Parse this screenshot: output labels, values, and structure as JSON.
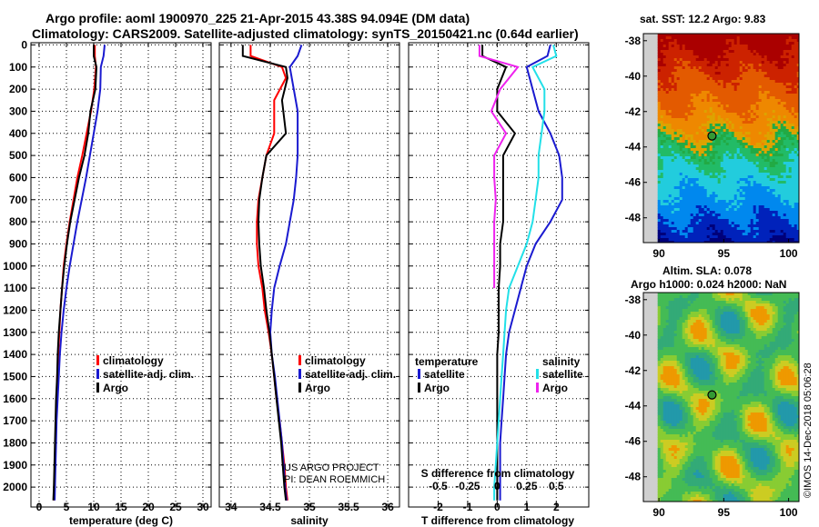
{
  "header": {
    "line1": "Argo profile: aoml 1900970_225 21-Apr-2015 43.38S 94.094E (DM data)",
    "line2": "Climatology: CARS2009. Satellite-adjusted climatology: synTS_20150421.nc (0.64d earlier)"
  },
  "colors": {
    "climatology": "#ff0000",
    "satellite": "#1a1ad0",
    "argo": "#000000",
    "sal_satellite": "#22e0e8",
    "sal_argo": "#ee22ee"
  },
  "depth_axis": {
    "ticks": [
      0,
      100,
      200,
      300,
      400,
      500,
      600,
      700,
      800,
      900,
      1000,
      1100,
      1200,
      1300,
      1400,
      1500,
      1600,
      1700,
      1800,
      1900,
      2000
    ],
    "range": [
      -10,
      2090
    ]
  },
  "temperature_panel": {
    "xlabel": "temperature (deg C)",
    "xlim": [
      -1.5,
      31.5
    ],
    "xticks": [
      0,
      5,
      10,
      15,
      20,
      25,
      30
    ],
    "legend": [
      "climatology",
      "satellite-adj. clim.",
      "Argo"
    ],
    "series": [
      {
        "name": "climatology",
        "color_key": "climatology",
        "x": [
          10.2,
          10.2,
          10.4,
          10.1,
          9.5,
          8.7,
          7.9,
          7.0,
          6.3,
          5.6,
          5.0,
          4.5,
          4.2,
          3.9,
          3.7,
          3.5,
          3.3,
          3.2,
          3.1,
          3.0,
          2.9,
          2.8,
          2.7
        ],
        "depth": [
          0,
          50,
          100,
          200,
          300,
          400,
          500,
          600,
          700,
          800,
          900,
          1000,
          1100,
          1200,
          1300,
          1400,
          1500,
          1600,
          1700,
          1800,
          1900,
          2000,
          2060
        ]
      },
      {
        "name": "satellite",
        "color_key": "satellite",
        "x": [
          12.0,
          11.8,
          11.3,
          11.2,
          10.7,
          10.0,
          9.3,
          8.6,
          7.8,
          7.0,
          6.3,
          5.6,
          5.0,
          4.5,
          4.1,
          3.8,
          3.6,
          3.4,
          3.2,
          3.1,
          3.0,
          2.9,
          2.85
        ],
        "depth": [
          0,
          50,
          100,
          200,
          300,
          400,
          500,
          600,
          700,
          800,
          900,
          1000,
          1100,
          1200,
          1300,
          1400,
          1500,
          1600,
          1700,
          1800,
          1900,
          2000,
          2060
        ]
      },
      {
        "name": "argo",
        "color_key": "argo",
        "x": [
          10.0,
          10.0,
          10.5,
          10.3,
          9.4,
          9.0,
          8.3,
          7.3,
          6.5,
          5.7,
          5.1,
          4.6,
          4.2,
          3.9,
          3.6,
          3.4,
          3.3,
          3.1,
          3.0,
          2.9,
          2.8,
          2.7,
          2.6
        ],
        "depth": [
          0,
          50,
          100,
          200,
          300,
          400,
          500,
          600,
          700,
          800,
          900,
          1000,
          1100,
          1200,
          1300,
          1400,
          1500,
          1600,
          1700,
          1800,
          1900,
          2000,
          2060
        ]
      }
    ]
  },
  "salinity_panel": {
    "xlabel": "salinity",
    "xlim": [
      33.85,
      36.15
    ],
    "xticks": [
      34,
      34.5,
      35,
      35.5,
      36
    ],
    "xticklabels": [
      "34",
      "34.5",
      "35",
      "35.5",
      "36"
    ],
    "legend": [
      "climatology",
      "satellite-adj. clim.",
      "Argo"
    ],
    "credit1": "US ARGO PROJECT",
    "credit2": "PI: DEAN ROEMMICH",
    "series": [
      {
        "name": "climatology",
        "color_key": "climatology",
        "x": [
          34.25,
          34.25,
          34.65,
          34.7,
          34.55,
          34.55,
          34.45,
          34.4,
          34.35,
          34.33,
          34.33,
          34.35,
          34.4,
          34.43,
          34.48,
          34.52,
          34.55,
          34.58,
          34.62,
          34.65,
          34.68,
          34.7,
          34.72
        ],
        "depth": [
          0,
          50,
          100,
          150,
          250,
          400,
          500,
          600,
          700,
          800,
          900,
          1000,
          1100,
          1200,
          1300,
          1400,
          1500,
          1600,
          1700,
          1800,
          1900,
          2000,
          2060
        ]
      },
      {
        "name": "satellite",
        "color_key": "satellite",
        "x": [
          34.9,
          34.85,
          34.75,
          34.8,
          34.85,
          34.85,
          34.85,
          34.83,
          34.8,
          34.75,
          34.7,
          34.62,
          34.55,
          34.52,
          34.5,
          34.52,
          34.56,
          34.59,
          34.62,
          34.65,
          34.67,
          34.69,
          34.71
        ],
        "depth": [
          0,
          50,
          100,
          200,
          300,
          400,
          500,
          600,
          700,
          800,
          900,
          1000,
          1100,
          1200,
          1300,
          1400,
          1500,
          1600,
          1700,
          1800,
          1900,
          2000,
          2060
        ]
      },
      {
        "name": "argo",
        "color_key": "argo",
        "x": [
          34.15,
          34.15,
          34.7,
          34.72,
          34.65,
          34.7,
          34.45,
          34.4,
          34.36,
          34.35,
          34.36,
          34.38,
          34.42,
          34.45,
          34.49,
          34.52,
          34.55,
          34.58,
          34.61,
          34.64,
          34.66,
          34.68,
          34.7
        ],
        "depth": [
          0,
          50,
          100,
          150,
          250,
          400,
          500,
          600,
          700,
          800,
          900,
          1000,
          1100,
          1200,
          1300,
          1400,
          1500,
          1600,
          1700,
          1800,
          1900,
          2000,
          2060
        ]
      }
    ]
  },
  "difference_panel": {
    "xlabel": "T difference from climatology",
    "xlabel_top": "S difference from climatology",
    "xlim": [
      -3,
      3.1
    ],
    "xticks": [
      -2,
      -1,
      0,
      1,
      2
    ],
    "s_ticks": [
      -0.5,
      -0.25,
      0,
      0.25,
      0.5
    ],
    "s_ticklabels": [
      "-0.5",
      "-0.25",
      "0",
      "0.25",
      "0.5"
    ],
    "legend_temperature_title": "temperature",
    "legend_salinity_title": "salinity",
    "legend_temperature": [
      "satellite",
      "Argo"
    ],
    "legend_salinity": [
      "satellite",
      "Argo"
    ],
    "series": [
      {
        "name": "T satellite",
        "color_key": "satellite",
        "x": [
          1.8,
          1.7,
          1.0,
          1.2,
          1.4,
          1.8,
          2.1,
          2.2,
          2.2,
          1.8,
          1.3,
          1.0,
          0.8,
          0.6,
          0.4,
          0.3,
          0.25,
          0.2,
          0.15,
          0.1,
          0.1,
          0.1,
          0.1
        ],
        "depth": [
          0,
          50,
          100,
          200,
          300,
          400,
          500,
          600,
          700,
          800,
          900,
          1000,
          1100,
          1200,
          1300,
          1400,
          1500,
          1600,
          1700,
          1800,
          1900,
          2000,
          2060
        ]
      },
      {
        "name": "T Argo",
        "color_key": "argo",
        "x": [
          -0.5,
          -0.5,
          0.3,
          0.0,
          0.0,
          0.6,
          0.2,
          0.2,
          0.2,
          0.2,
          0.1,
          0.1,
          0.05,
          0.05,
          0.05,
          0.0,
          0.0,
          0.0,
          0.0,
          0.0,
          0.0,
          0.0,
          0.0
        ],
        "depth": [
          0,
          50,
          100,
          200,
          300,
          400,
          500,
          600,
          700,
          800,
          900,
          1000,
          1100,
          1200,
          1300,
          1400,
          1500,
          1600,
          1700,
          1800,
          1900,
          2000,
          2060
        ]
      },
      {
        "name": "S satellite",
        "color_key": "sal_satellite",
        "x": [
          1.9,
          2.0,
          1.2,
          1.6,
          1.6,
          1.5,
          1.4,
          1.4,
          1.3,
          1.2,
          1.0,
          0.7,
          0.4,
          0.3,
          0.25,
          0.2,
          0.15,
          0.1,
          0.05,
          0.0,
          -0.05,
          -0.1,
          -0.1
        ],
        "depth": [
          0,
          50,
          100,
          200,
          300,
          400,
          500,
          600,
          700,
          800,
          900,
          1000,
          1100,
          1200,
          1300,
          1400,
          1500,
          1600,
          1700,
          1800,
          1900,
          2000,
          2060
        ]
      },
      {
        "name": "S Argo",
        "color_key": "sal_argo",
        "x": [
          -0.6,
          -0.6,
          0.7,
          0.1,
          -0.2,
          0.3,
          -0.1,
          -0.1,
          -0.05,
          -0.1,
          -0.1,
          -0.1,
          -0.1,
          null
        ],
        "depth": [
          0,
          50,
          100,
          200,
          300,
          400,
          500,
          600,
          700,
          800,
          900,
          1000,
          1100,
          1150
        ]
      }
    ]
  },
  "map_top": {
    "title": "sat. SST: 12.2 Argo: 9.83",
    "yticks": [
      -38,
      -40,
      -42,
      -44,
      -46,
      -48
    ],
    "xticks": [
      90,
      95,
      100
    ],
    "xlim": [
      88.8,
      100.8
    ],
    "ylim": [
      -49.4,
      -37.6
    ],
    "argo_lon": 94.094,
    "argo_lat": -43.38
  },
  "map_bottom": {
    "title1": "Altim. SLA: 0.078",
    "title2": "Argo h1000: 0.024 h2000: NaN",
    "yticks": [
      -38,
      -40,
      -42,
      -44,
      -46,
      -48
    ],
    "xticks": [
      90,
      95,
      100
    ],
    "xlim": [
      88.8,
      100.8
    ],
    "ylim": [
      -49.4,
      -37.6
    ],
    "argo_lon": 94.094,
    "argo_lat": -43.38
  },
  "timestamp": "©IMOS 14-Dec-2018 05:06:28"
}
